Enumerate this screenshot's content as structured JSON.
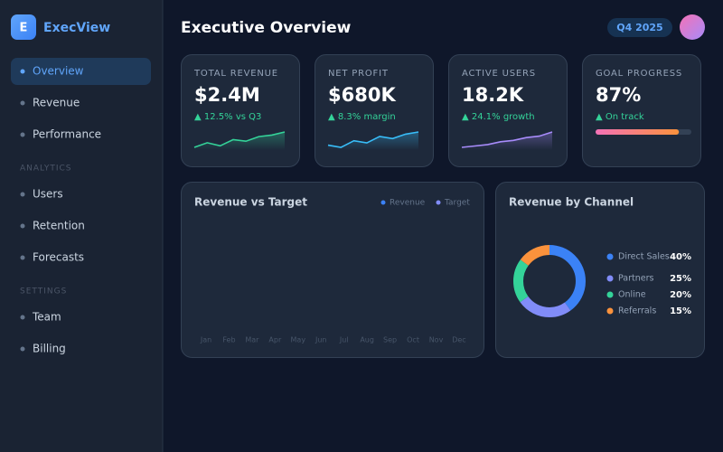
{
  "sidebar": {
    "logo": "E",
    "brand": "ExecView",
    "active": 0,
    "sections": [
      {
        "items": [
          "Overview",
          "Revenue",
          "Performance"
        ]
      },
      {
        "label": "ANALYTICS",
        "items": [
          "Users",
          "Retention",
          "Forecasts"
        ]
      },
      {
        "label": "SETTINGS",
        "items": [
          "Team",
          "Billing"
        ]
      }
    ]
  },
  "header": {
    "title": "Executive Overview",
    "period": "Q4 2025"
  },
  "kpis": [
    {
      "label": "TOTAL REVENUE",
      "value": "$2.4M",
      "delta": "▲ 12.5% vs Q3",
      "spark": [
        3,
        6,
        4,
        8,
        7,
        10,
        11,
        13
      ],
      "color": "#34d399"
    },
    {
      "label": "NET PROFIT",
      "value": "$680K",
      "delta": "▲ 8.3% margin",
      "spark": [
        5,
        4,
        7,
        6,
        9,
        8,
        10,
        11
      ],
      "color": "#38bdf8"
    },
    {
      "label": "ACTIVE USERS",
      "value": "18.2K",
      "delta": "▲ 24.1% growth",
      "spark": [
        2,
        3,
        4,
        6,
        7,
        9,
        10,
        13
      ],
      "color": "#a78bfa"
    },
    {
      "label": "GOAL PROGRESS",
      "value": "87%",
      "delta": "▲ On track",
      "progress": 87
    }
  ],
  "revenue_chart": {
    "type": "bar",
    "title": "Revenue vs Target",
    "legend": [
      {
        "name": "Revenue",
        "color": "#3b82f6"
      },
      {
        "name": "Target",
        "color": "#818cf8"
      }
    ],
    "categories": [
      "Jan",
      "Feb",
      "Mar",
      "Apr",
      "May",
      "Jun",
      "Jul",
      "Aug",
      "Sep",
      "Oct",
      "Nov",
      "Dec"
    ]
  },
  "channel_chart": {
    "type": "donut",
    "title": "Revenue by Channel",
    "categories": [
      "Direct Sales",
      "Partners",
      "Online",
      "Referrals"
    ],
    "values": [
      40,
      25,
      20,
      15
    ],
    "value_labels": [
      "40%",
      "25%",
      "20%",
      "15%"
    ],
    "colors": [
      "#3b82f6",
      "#818cf8",
      "#34d399",
      "#fb923c"
    ]
  }
}
